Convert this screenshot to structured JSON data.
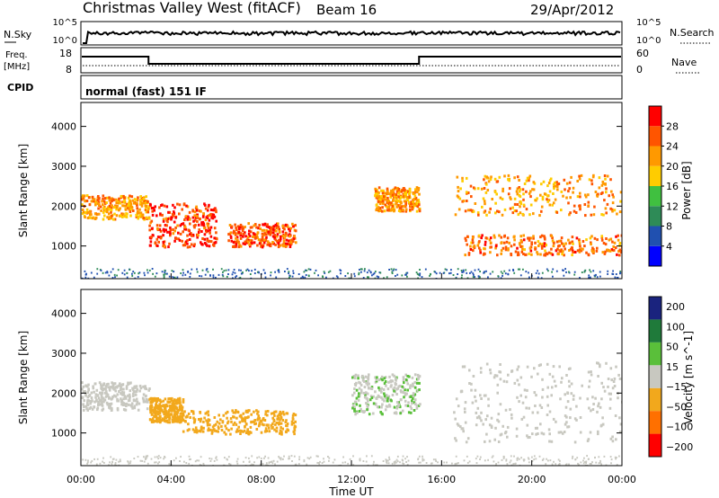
{
  "header": {
    "title": "Christmas Valley West (fitACF)",
    "beam": "Beam 16",
    "date": "29/Apr/2012"
  },
  "noise_panel": {
    "left_label": "N.Sky",
    "right_label": "N.Search",
    "left_ticks": [
      "10^5",
      "10^0"
    ],
    "right_ticks": [
      "10^5",
      "10^0"
    ]
  },
  "freq_panel": {
    "left_label_line1": "Freq.",
    "left_label_line2": "[MHz]",
    "right_label": "Nave",
    "left_ticks": [
      "18",
      "8"
    ],
    "right_ticks": [
      "60",
      "0"
    ]
  },
  "cpid": {
    "label": "CPID",
    "value": "normal (fast) 151 IF"
  },
  "colors": {
    "power_scale": [
      "#0000ff",
      "#2050b0",
      "#2e8b57",
      "#40c040",
      "#ffcc00",
      "#ff9900",
      "#ff5500",
      "#ff0000"
    ],
    "velocity_scale": [
      "#1a237e",
      "#1f7a3a",
      "#5abf3a",
      "#c8c8c0",
      "#f2a81c",
      "#ff7000",
      "#ff0000"
    ]
  },
  "chart_data": [
    {
      "type": "heatmap",
      "title": "",
      "xlabel": "",
      "ylabel": "Slant Range [km]",
      "x_ticks": [
        "00:00",
        "04:00",
        "08:00",
        "12:00",
        "16:00",
        "20:00",
        "00:00"
      ],
      "x_range": [
        "00:00",
        "24:00"
      ],
      "y_ticks": [
        1000,
        2000,
        3000,
        4000
      ],
      "ylim": [
        180,
        4600
      ],
      "colorbar": {
        "label": "Power [dB]",
        "ticks": [
          4,
          8,
          12,
          16,
          20,
          24,
          28
        ],
        "range": [
          0,
          32
        ]
      },
      "echo_regions": [
        {
          "t_start": 0.0,
          "t_end": 3.0,
          "range_low": 1700,
          "range_high": 2300,
          "power_db": 22
        },
        {
          "t_start": 3.0,
          "t_end": 6.0,
          "range_low": 1000,
          "range_high": 2100,
          "power_db": 28
        },
        {
          "t_start": 6.5,
          "t_end": 9.5,
          "range_low": 1000,
          "range_high": 1600,
          "power_db": 26
        },
        {
          "t_start": 13.0,
          "t_end": 15.0,
          "range_low": 1900,
          "range_high": 2500,
          "power_db": 22
        },
        {
          "t_start": 16.5,
          "t_end": 24.0,
          "range_low": 1800,
          "range_high": 2800,
          "power_db": 22
        },
        {
          "t_start": 17.0,
          "t_end": 24.0,
          "range_low": 800,
          "range_high": 1300,
          "power_db": 24
        }
      ]
    },
    {
      "type": "heatmap",
      "title": "",
      "xlabel": "Time UT",
      "ylabel": "Slant Range [km]",
      "x_ticks": [
        "00:00",
        "04:00",
        "08:00",
        "12:00",
        "16:00",
        "20:00",
        "00:00"
      ],
      "x_range": [
        "00:00",
        "24:00"
      ],
      "y_ticks": [
        1000,
        2000,
        3000,
        4000
      ],
      "ylim": [
        180,
        4600
      ],
      "colorbar": {
        "label": "Velocity [m s^-1]",
        "ticks": [
          200,
          100,
          50,
          15,
          -15,
          -50,
          -100,
          -200
        ],
        "range": [
          -250,
          250
        ]
      },
      "echo_regions": [
        {
          "t_start": 0.0,
          "t_end": 3.0,
          "range_low": 1600,
          "range_high": 2300,
          "velocity": 0
        },
        {
          "t_start": 3.0,
          "t_end": 4.5,
          "range_low": 1300,
          "range_high": 1900,
          "velocity": -60
        },
        {
          "t_start": 4.5,
          "t_end": 9.5,
          "range_low": 1000,
          "range_high": 1600,
          "velocity": -60
        },
        {
          "t_start": 12.0,
          "t_end": 15.0,
          "range_low": 1500,
          "range_high": 2500,
          "velocity": 30
        },
        {
          "t_start": 16.5,
          "t_end": 24.0,
          "range_low": 800,
          "range_high": 2800,
          "velocity": 0
        }
      ]
    }
  ]
}
